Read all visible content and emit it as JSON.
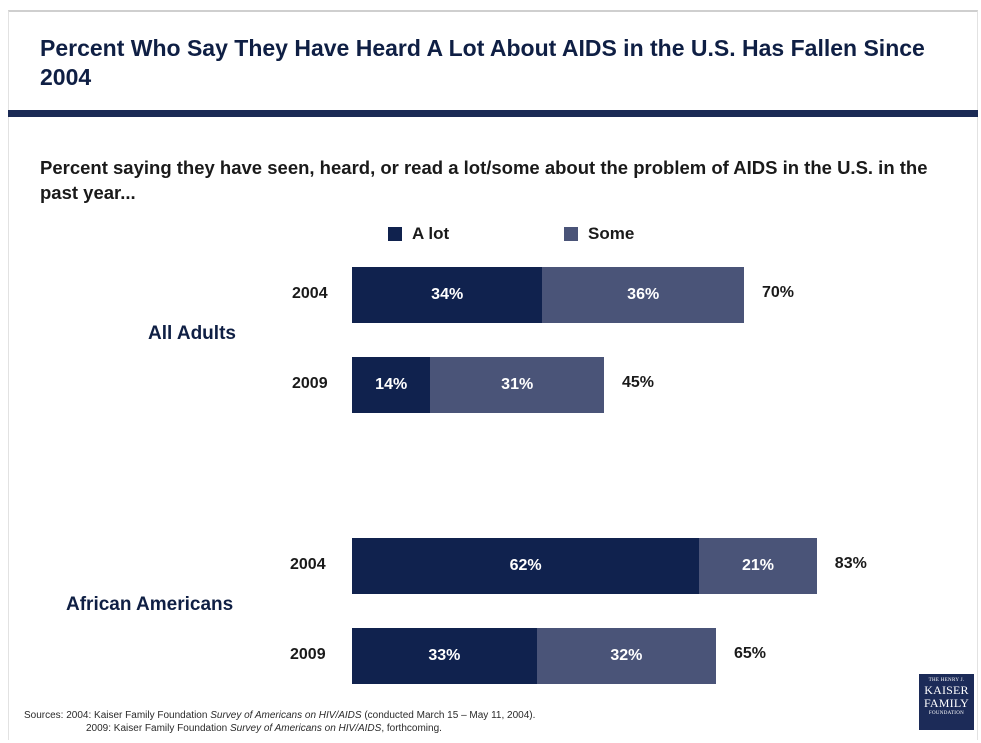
{
  "title": "Percent Who Say They Have Heard A Lot About AIDS in the U.S. Has Fallen Since 2004",
  "subtitle": "Percent saying they have seen, heard, or read a lot/some about the problem of AIDS in the U.S. in the past year...",
  "colors": {
    "a_lot": "#10224e",
    "some": "#4a5478",
    "accent": "#1b2a55"
  },
  "legend": [
    {
      "label": "A lot",
      "color": "#10224e"
    },
    {
      "label": "Some",
      "color": "#4a5478"
    }
  ],
  "sources": {
    "line1_prefix": "Sources: 2004: Kaiser Family Foundation ",
    "line1_italic": "Survey of Americans on HIV/AIDS",
    "line1_suffix": " (conducted March 15 – May 11, 2004).",
    "line2_prefix": "2009: Kaiser Family Foundation ",
    "line2_italic": "Survey of Americans on HIV/AIDS",
    "line2_suffix": ", forthcoming."
  },
  "logo": {
    "top_text": "THE HENRY J.",
    "line1": "KAISER",
    "line2": "FAMILY",
    "bottom_text": "FOUNDATION"
  },
  "chart_data": {
    "type": "bar",
    "orientation": "horizontal",
    "stacked": true,
    "title": "Percent Who Say They Have Heard A Lot About AIDS in the U.S. Has Fallen Since 2004",
    "subtitle": "Percent saying they have seen, heard, or read a lot/some about the problem of AIDS in the U.S. in the past year...",
    "legend_position": "top",
    "grid": false,
    "xlim": [
      0,
      100
    ],
    "value_suffix": "%",
    "series_names": [
      "A lot",
      "Some"
    ],
    "groups": [
      {
        "name": "All Adults",
        "bars": [
          {
            "year": "2004",
            "a_lot": 34,
            "some": 36,
            "total": 70
          },
          {
            "year": "2009",
            "a_lot": 14,
            "some": 31,
            "total": 45
          }
        ]
      },
      {
        "name": "African Americans",
        "bars": [
          {
            "year": "2004",
            "a_lot": 62,
            "some": 21,
            "total": 83
          },
          {
            "year": "2009",
            "a_lot": 33,
            "some": 32,
            "total": 65
          }
        ]
      }
    ]
  }
}
